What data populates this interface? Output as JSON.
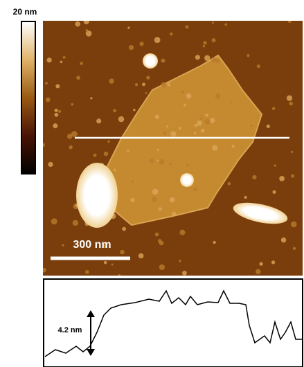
{
  "colorbar": {
    "label": "20 nm"
  },
  "image": {
    "scale_bar": "300 nm"
  },
  "profile": {
    "step_label": "4.2 nm"
  }
}
